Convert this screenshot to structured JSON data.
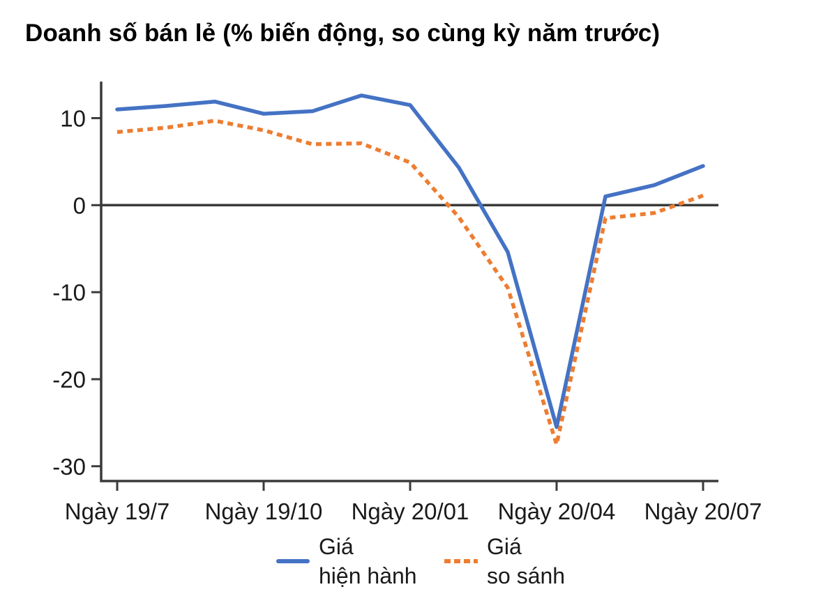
{
  "chart_data": {
    "type": "line",
    "title": "Doanh số bán lẻ (% biến động, so cùng kỳ năm trước)",
    "categories": [
      "2019-07",
      "2019-08",
      "2019-09",
      "2019-10",
      "2019-11",
      "2019-12",
      "2020-01",
      "2020-02",
      "2020-03",
      "2020-04",
      "2020-05",
      "2020-06",
      "2020-07"
    ],
    "series": [
      {
        "name": "Giá hiện hành",
        "style": "solid",
        "color": "#4472C4",
        "values": [
          11.0,
          11.4,
          11.9,
          10.5,
          10.8,
          12.6,
          11.5,
          4.3,
          -5.4,
          -25.5,
          1.0,
          2.3,
          4.5
        ]
      },
      {
        "name": "Giá so sánh",
        "style": "dotted",
        "color": "#ED7D31",
        "values": [
          8.4,
          8.9,
          9.7,
          8.6,
          7.0,
          7.1,
          4.9,
          -1.4,
          -9.5,
          -27.5,
          -1.5,
          -0.9,
          1.1
        ]
      }
    ],
    "x_tick_labels": [
      "Ngày 19/7",
      "Ngày 19/10",
      "Ngày 20/01",
      "Ngày 20/04",
      "Ngày 20/07"
    ],
    "x_tick_positions": [
      0,
      3,
      6,
      9,
      12
    ],
    "y_ticks": [
      10,
      0,
      -10,
      -20,
      -30
    ],
    "ylim": [
      -31.7,
      14.2
    ],
    "zero_line": true,
    "grid": false,
    "legend_position": "bottom"
  },
  "legend": {
    "items": [
      {
        "line1": "Giá",
        "line2": "hiện hành",
        "color": "#4472C4",
        "style": "solid"
      },
      {
        "line1": "Giá",
        "line2": "so sánh",
        "color": "#ED7D31",
        "style": "dotted"
      }
    ]
  },
  "colors": {
    "axis": "#3a3a3a",
    "text": "#1a1a1a",
    "background": "#ffffff",
    "series_blue": "#4472C4",
    "series_orange": "#ED7D31"
  }
}
